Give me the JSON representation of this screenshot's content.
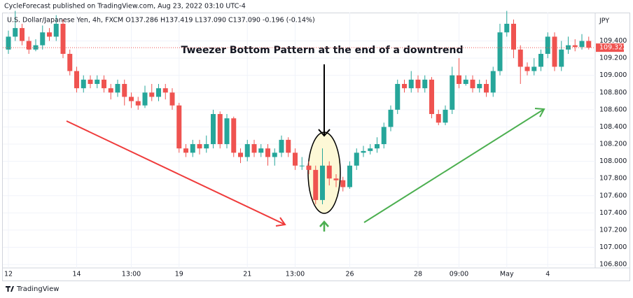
{
  "chart_data": {
    "type": "candlestick",
    "title": "CycleForecast published on TradingView.com, Aug 23, 2022 03:10 UTC-4",
    "subtitle": "U.S. Dollar/Japanese Yen, 4h, FXCM  O137.286  H137.419  L137.090  C137.090  -0.196 (-0.14%)",
    "annotation": "Tweezer Bottom Pattern at the end of a downtrend",
    "currency": "JPY",
    "source": "TradingView",
    "up_color": "#26a69a",
    "down_color": "#ef5350",
    "grid": true,
    "ylim": [
      106.76,
      109.73
    ],
    "yticks": [
      {
        "value": 106.8,
        "label": "106.800"
      },
      {
        "value": 107.0,
        "label": "107.000"
      },
      {
        "value": 107.2,
        "label": "107.200"
      },
      {
        "value": 107.4,
        "label": "107.400"
      },
      {
        "value": 107.6,
        "label": "107.600"
      },
      {
        "value": 107.8,
        "label": "107.800"
      },
      {
        "value": 108.0,
        "label": "108.000"
      },
      {
        "value": 108.2,
        "label": "108.200"
      },
      {
        "value": 108.4,
        "label": "108.400"
      },
      {
        "value": 108.6,
        "label": "108.600"
      },
      {
        "value": 108.8,
        "label": "108.800"
      },
      {
        "value": 109.0,
        "label": "109.000"
      },
      {
        "value": 109.2,
        "label": "109.200"
      },
      {
        "value": 109.4,
        "label": "109.400"
      }
    ],
    "categories": [
      "12",
      null,
      null,
      null,
      null,
      null,
      null,
      null,
      null,
      null,
      "14",
      null,
      null,
      null,
      null,
      null,
      null,
      null,
      "13:00",
      null,
      null,
      null,
      null,
      null,
      null,
      "19",
      null,
      null,
      null,
      null,
      null,
      null,
      null,
      null,
      null,
      "21",
      null,
      null,
      null,
      null,
      null,
      null,
      "13:00",
      null,
      null,
      null,
      null,
      null,
      null,
      null,
      "26",
      null,
      null,
      null,
      null,
      null,
      null,
      null,
      null,
      null,
      "28",
      null,
      null,
      null,
      null,
      null,
      "09:00",
      null,
      null,
      null,
      null,
      null,
      null,
      "May",
      null,
      null,
      null,
      null,
      null,
      "4",
      null,
      null,
      null,
      null,
      null,
      null
    ],
    "open": [
      109.3,
      109.45,
      109.55,
      109.4,
      109.3,
      109.35,
      109.5,
      109.45,
      109.6,
      109.25,
      109.05,
      108.85,
      108.95,
      108.9,
      108.95,
      108.85,
      108.8,
      108.9,
      108.75,
      108.7,
      108.65,
      108.8,
      108.75,
      108.85,
      108.8,
      108.65,
      108.15,
      108.1,
      108.2,
      108.15,
      108.2,
      108.55,
      108.2,
      108.5,
      108.1,
      108.05,
      108.2,
      108.1,
      108.15,
      108.05,
      108.1,
      108.25,
      108.1,
      107.95,
      107.95,
      107.9,
      107.55,
      107.95,
      107.8,
      107.78,
      107.7,
      107.95,
      108.1,
      108.12,
      108.15,
      108.2,
      108.4,
      108.6,
      108.9,
      108.85,
      108.95,
      108.85,
      108.95,
      108.55,
      108.45,
      108.6,
      109.0,
      108.9,
      108.95,
      108.85,
      108.9,
      108.8,
      109.05,
      109.5,
      109.6,
      109.3,
      109.1,
      109.05,
      109.1,
      109.25,
      109.45,
      109.1,
      109.3,
      109.35,
      109.33,
      109.4
    ],
    "high": [
      109.52,
      109.75,
      109.6,
      109.45,
      109.42,
      109.58,
      109.55,
      109.7,
      109.65,
      109.3,
      109.1,
      109.0,
      109.0,
      109.0,
      109.0,
      108.9,
      108.95,
      108.95,
      108.8,
      108.75,
      108.88,
      108.9,
      108.9,
      108.9,
      108.85,
      108.68,
      108.2,
      108.25,
      108.25,
      108.3,
      108.6,
      108.58,
      108.55,
      108.52,
      108.15,
      108.25,
      108.25,
      108.2,
      108.2,
      108.15,
      108.3,
      108.28,
      108.15,
      108.05,
      108.0,
      107.95,
      108.15,
      108.0,
      107.85,
      107.82,
      108.0,
      108.15,
      108.18,
      108.2,
      108.28,
      108.45,
      108.65,
      108.95,
      108.95,
      109.05,
      109.0,
      109.0,
      108.98,
      108.6,
      108.65,
      109.1,
      109.2,
      109.0,
      109.0,
      108.95,
      108.95,
      109.1,
      109.6,
      109.75,
      109.65,
      109.35,
      109.15,
      109.2,
      109.3,
      109.5,
      109.5,
      109.4,
      109.45,
      109.42,
      109.48,
      109.45
    ],
    "low": [
      109.25,
      109.4,
      109.35,
      109.25,
      109.28,
      109.3,
      109.4,
      109.4,
      109.2,
      109.0,
      108.8,
      108.8,
      108.85,
      108.85,
      108.8,
      108.72,
      108.75,
      108.65,
      108.62,
      108.6,
      108.62,
      108.7,
      108.7,
      108.72,
      108.6,
      108.1,
      108.05,
      108.05,
      108.08,
      108.1,
      108.15,
      108.15,
      108.15,
      108.05,
      107.98,
      108.0,
      108.05,
      108.05,
      107.95,
      107.95,
      108.05,
      108.05,
      107.9,
      107.9,
      107.85,
      107.5,
      107.5,
      107.72,
      107.7,
      107.65,
      107.68,
      107.9,
      108.05,
      108.08,
      108.1,
      108.15,
      108.35,
      108.55,
      108.8,
      108.8,
      108.8,
      108.8,
      108.5,
      108.42,
      108.42,
      108.55,
      108.85,
      108.88,
      108.8,
      108.8,
      108.75,
      108.75,
      109.0,
      109.45,
      109.2,
      108.9,
      109.0,
      109.0,
      109.05,
      109.2,
      109.05,
      109.05,
      109.25,
      109.28,
      109.3,
      109.3
    ],
    "close": [
      109.45,
      109.55,
      109.4,
      109.3,
      109.35,
      109.5,
      109.45,
      109.6,
      109.25,
      109.05,
      108.85,
      108.95,
      108.9,
      108.95,
      108.85,
      108.8,
      108.9,
      108.75,
      108.7,
      108.65,
      108.8,
      108.75,
      108.85,
      108.8,
      108.65,
      108.15,
      108.1,
      108.2,
      108.15,
      108.2,
      108.55,
      108.2,
      108.5,
      108.1,
      108.05,
      108.2,
      108.1,
      108.15,
      108.05,
      108.1,
      108.25,
      108.1,
      107.95,
      107.95,
      107.9,
      107.55,
      107.95,
      107.8,
      107.78,
      107.7,
      107.95,
      108.1,
      108.12,
      108.15,
      108.2,
      108.4,
      108.6,
      108.9,
      108.85,
      108.95,
      108.85,
      108.95,
      108.55,
      108.45,
      108.6,
      109.0,
      108.9,
      108.95,
      108.85,
      108.9,
      108.8,
      109.05,
      109.5,
      109.6,
      109.3,
      109.1,
      109.05,
      109.1,
      109.25,
      109.45,
      109.1,
      109.3,
      109.35,
      109.33,
      109.4,
      109.322
    ]
  }
}
